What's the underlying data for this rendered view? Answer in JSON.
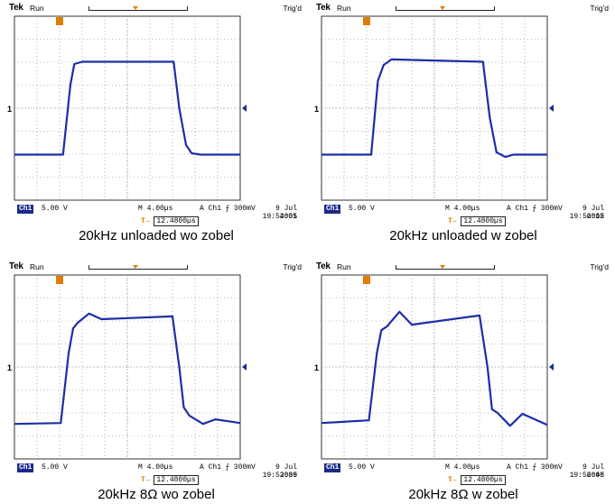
{
  "colors": {
    "trace": "#1c2ea8",
    "grid": "#7a7a7a",
    "accent": "#e07c00",
    "ch_box": "#1a2a8a"
  },
  "panels": [
    {
      "brand": "Tek",
      "state": "Run",
      "trigger_status": "Trig'd",
      "ch_label": "Ch1",
      "volts_div": "5.00 V",
      "timebase": "M 4.00µs",
      "trigger_source": "A  Ch1 ⨍  300mV",
      "trigger_offset": "12.4800µs",
      "date": "9 Jul  2005",
      "time": "19:54:01",
      "caption": "20kHz unloaded wo zobel"
    },
    {
      "brand": "Tek",
      "state": "Run",
      "trigger_status": "Trig'd",
      "ch_label": "Ch1",
      "volts_div": "5.00 V",
      "timebase": "M 4.00µs",
      "trigger_source": "A  Ch1 ⨍  300mV",
      "trigger_offset": "12.4800µs",
      "date": "9 Jul  2005",
      "time": "19:56:12",
      "caption": "20kHz unloaded w zobel"
    },
    {
      "brand": "Tek",
      "state": "Run",
      "trigger_status": "Trig'd",
      "ch_label": "Ch1",
      "volts_div": "5.00 V",
      "timebase": "M 4.00µs",
      "trigger_source": "A  Ch1 ⨍  300mV",
      "trigger_offset": "12.4800µs",
      "date": "9 Jul  2005",
      "time": "19:53:39",
      "caption": "20kHz 8Ω wo zobel"
    },
    {
      "brand": "Tek",
      "state": "Run",
      "trigger_status": "Trig'd",
      "ch_label": "Ch1",
      "volts_div": "5.00 V",
      "timebase": "M 4.00µs",
      "trigger_source": "A  Ch1 ⨍  300mV",
      "trigger_offset": "12.4800µs",
      "date": "9 Jul  2005",
      "time": "19:56:48",
      "caption": "20kHz 8Ω w zobel"
    }
  ],
  "chart_data": [
    {
      "type": "line",
      "grid": true,
      "xlim": [
        0,
        40
      ],
      "ylim": [
        -20,
        20
      ],
      "series": [
        {
          "x": [
            0,
            8.6,
            9.9,
            10.6,
            12,
            28.2,
            29.2,
            30.4,
            31.4,
            33,
            40
          ],
          "values": [
            -10.1,
            -10.1,
            5,
            9.6,
            10.1,
            10.1,
            0,
            -8,
            -9.8,
            -10.1,
            -10.1
          ]
        }
      ]
    },
    {
      "type": "line",
      "grid": true,
      "xlim": [
        0,
        40
      ],
      "ylim": [
        -20,
        20
      ],
      "series": [
        {
          "x": [
            0,
            8.8,
            10,
            11,
            12.4,
            28.6,
            29.8,
            31,
            32.6,
            34,
            40
          ],
          "values": [
            -10.1,
            -10.1,
            6,
            9.4,
            10.6,
            10.1,
            -2,
            -9.6,
            -10.6,
            -10.1,
            -10.1
          ]
        }
      ]
    },
    {
      "type": "line",
      "grid": true,
      "xlim": [
        0,
        40
      ],
      "ylim": [
        -20,
        20
      ],
      "series": [
        {
          "x": [
            0,
            8.2,
            9.6,
            10.4,
            11.2,
            13.2,
            15.4,
            28,
            29.2,
            30,
            31,
            33.4,
            35.6,
            40
          ],
          "values": [
            -12.4,
            -12.2,
            3,
            8.4,
            9.6,
            11.6,
            10.4,
            11,
            0,
            -8.8,
            -10.6,
            -12.4,
            -11.4,
            -12.2
          ]
        }
      ]
    },
    {
      "type": "line",
      "grid": true,
      "xlim": [
        0,
        40
      ],
      "ylim": [
        -20,
        20
      ],
      "series": [
        {
          "x": [
            0,
            8.4,
            9.8,
            10.6,
            11.6,
            13.8,
            16,
            28,
            29.4,
            30.2,
            31.2,
            33.4,
            35.6,
            40
          ],
          "values": [
            -12.2,
            -11.6,
            3,
            8,
            8.8,
            12,
            9.2,
            11.2,
            0,
            -9.2,
            -10,
            -12.8,
            -10.2,
            -12.6
          ]
        }
      ]
    }
  ]
}
